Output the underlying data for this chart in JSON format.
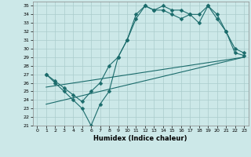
{
  "xlabel": "Humidex (Indice chaleur)",
  "xlim": [
    -0.5,
    23.5
  ],
  "ylim": [
    21,
    35.5
  ],
  "xticks": [
    0,
    1,
    2,
    3,
    4,
    5,
    6,
    7,
    8,
    9,
    10,
    11,
    12,
    13,
    14,
    15,
    16,
    17,
    18,
    19,
    20,
    21,
    22,
    23
  ],
  "yticks": [
    21,
    22,
    23,
    24,
    25,
    26,
    27,
    28,
    29,
    30,
    31,
    32,
    33,
    34,
    35
  ],
  "background_color": "#cce8e8",
  "grid_color": "#aacccc",
  "line_color": "#1a6b6b",
  "line1_x": [
    1,
    2,
    3,
    4,
    5,
    6,
    7,
    8,
    9,
    10,
    11,
    12,
    13,
    14,
    15,
    16,
    17,
    18,
    19,
    20,
    21,
    22,
    23
  ],
  "line1_y": [
    27,
    26,
    25,
    24,
    23,
    21,
    23.5,
    25,
    29,
    31,
    33.5,
    35,
    34.5,
    35,
    34.5,
    34.5,
    34,
    33,
    35,
    34,
    32,
    30,
    29.5
  ],
  "line2_x": [
    1,
    2,
    3,
    4,
    5,
    6,
    7,
    8,
    9,
    10,
    11,
    12,
    13,
    14,
    15,
    16,
    17,
    18,
    19,
    20,
    21,
    22,
    23
  ],
  "line2_y": [
    27,
    26.2,
    25.4,
    24.6,
    23.8,
    25,
    26,
    28,
    29,
    31,
    34,
    35,
    34.5,
    34.5,
    34,
    33.5,
    34,
    34,
    35,
    33.5,
    32,
    29.5,
    29.2
  ],
  "line3_x": [
    1,
    23
  ],
  "line3_y": [
    25.5,
    29.0
  ],
  "line4_x": [
    1,
    23
  ],
  "line4_y": [
    23.5,
    29.0
  ],
  "marker": "D",
  "markersize": 2.5
}
